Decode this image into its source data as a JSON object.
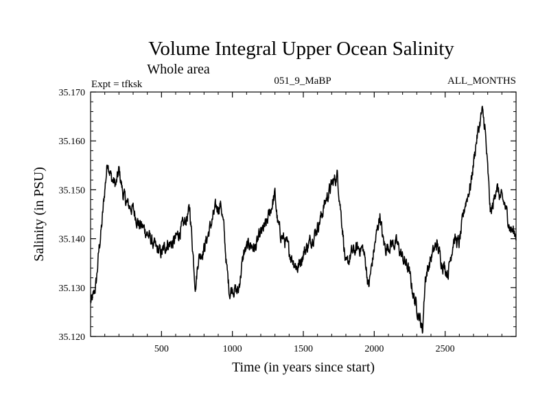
{
  "chart_data": {
    "type": "line",
    "title": "Volume Integral Upper Ocean Salinity",
    "subtitle": "Whole area",
    "experiment_label": "Expt = tfksk",
    "run_label": "051_9_MaBP",
    "period_label": "ALL_MONTHS",
    "xlabel": "Time (in years since start)",
    "ylabel": "Salinity (in PSU)",
    "xlim": [
      0,
      3000
    ],
    "ylim": [
      35.12,
      35.17
    ],
    "x_ticks": [
      500,
      1000,
      1500,
      2000,
      2500
    ],
    "x_tick_labels": [
      "500",
      "1000",
      "1500",
      "2000",
      "2500"
    ],
    "y_ticks": [
      35.12,
      35.13,
      35.14,
      35.15,
      35.16,
      35.17
    ],
    "y_tick_labels": [
      "35.120",
      "35.130",
      "35.140",
      "35.150",
      "35.160",
      "35.170"
    ],
    "grid": false,
    "series": [
      {
        "name": "Salinity",
        "color": "#000000",
        "x": [
          0,
          20,
          40,
          60,
          80,
          100,
          120,
          150,
          180,
          200,
          230,
          260,
          300,
          340,
          380,
          420,
          460,
          500,
          540,
          580,
          620,
          660,
          700,
          720,
          740,
          760,
          800,
          840,
          880,
          920,
          940,
          960,
          980,
          1000,
          1040,
          1080,
          1120,
          1160,
          1200,
          1240,
          1280,
          1300,
          1320,
          1340,
          1380,
          1420,
          1460,
          1500,
          1540,
          1580,
          1620,
          1660,
          1700,
          1740,
          1760,
          1780,
          1800,
          1840,
          1880,
          1920,
          1940,
          1960,
          2000,
          2040,
          2060,
          2080,
          2120,
          2160,
          2200,
          2240,
          2280,
          2320,
          2340,
          2360,
          2400,
          2440,
          2480,
          2520,
          2560,
          2600,
          2640,
          2680,
          2720,
          2760,
          2780,
          2800,
          2820,
          2840,
          2860,
          2880,
          2920,
          2960,
          3000
        ],
        "values": [
          35.127,
          35.128,
          35.131,
          35.138,
          35.143,
          35.15,
          35.156,
          35.152,
          35.151,
          35.154,
          35.149,
          35.147,
          35.146,
          35.143,
          35.142,
          35.14,
          35.138,
          35.137,
          35.139,
          35.139,
          35.141,
          35.143,
          35.146,
          35.138,
          35.13,
          35.136,
          35.138,
          35.142,
          35.146,
          35.147,
          35.142,
          35.134,
          35.129,
          35.13,
          35.129,
          35.137,
          35.139,
          35.138,
          35.141,
          35.143,
          35.147,
          35.149,
          35.143,
          35.141,
          35.139,
          35.136,
          35.134,
          35.137,
          35.139,
          35.141,
          35.144,
          35.148,
          35.151,
          35.153,
          35.147,
          35.141,
          35.134,
          35.137,
          35.138,
          35.138,
          35.135,
          35.13,
          35.138,
          35.145,
          35.14,
          35.138,
          35.139,
          35.139,
          35.136,
          35.134,
          35.128,
          35.124,
          35.121,
          35.132,
          35.136,
          35.139,
          35.135,
          35.133,
          35.14,
          35.139,
          35.147,
          35.151,
          35.16,
          35.166,
          35.163,
          35.154,
          35.145,
          35.147,
          35.151,
          35.149,
          35.147,
          35.142,
          35.141
        ]
      }
    ]
  }
}
